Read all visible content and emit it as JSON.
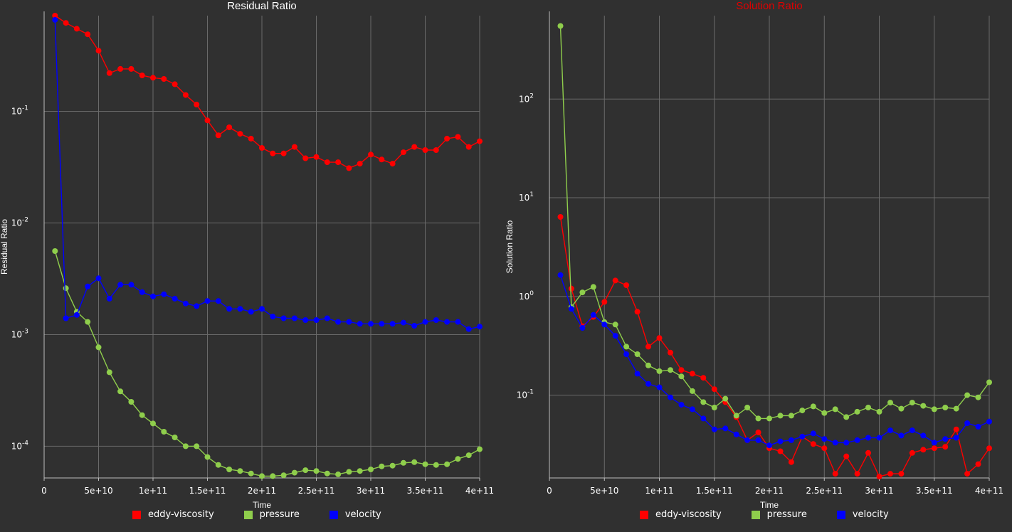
{
  "chart_data": [
    {
      "type": "line",
      "title": "Residual Ratio",
      "title_color": "#ffffff",
      "xlabel": "Time",
      "ylabel": "Residual Ratio",
      "yscale": "log",
      "xlim": [
        0,
        400000000000
      ],
      "ylim": [
        5.2e-05,
        0.72
      ],
      "x_ticks": [
        0,
        50000000000,
        100000000000,
        150000000000,
        200000000000,
        250000000000,
        300000000000,
        350000000000,
        400000000000
      ],
      "x_tick_labels": [
        "0",
        "5e+10",
        "1e+11",
        "1.5e+11",
        "2e+11",
        "2.5e+11",
        "3e+11",
        "3.5e+11",
        "4e+11"
      ],
      "y_ticks": [
        0.0001,
        0.001,
        0.01,
        0.1
      ],
      "y_tick_labels": [
        {
          "base": "10",
          "exp": "-4"
        },
        {
          "base": "10",
          "exp": "-3"
        },
        {
          "base": "10",
          "exp": "-2"
        },
        {
          "base": "10",
          "exp": "-1"
        }
      ],
      "grid": true,
      "legend_position": "bottom",
      "x": [
        10000000000,
        20000000000,
        30000000000,
        40000000000,
        50000000000,
        60000000000,
        70000000000,
        80000000000,
        90000000000,
        100000000000,
        110000000000,
        120000000000,
        130000000000,
        140000000000,
        150000000000,
        160000000000,
        170000000000,
        180000000000,
        190000000000,
        200000000000,
        210000000000,
        220000000000,
        230000000000,
        240000000000,
        250000000000,
        260000000000,
        270000000000,
        280000000000,
        290000000000,
        300000000000,
        310000000000,
        320000000000,
        330000000000,
        340000000000,
        350000000000,
        360000000000,
        370000000000,
        380000000000,
        390000000000,
        400000000000
      ],
      "series": [
        {
          "name": "eddy-viscosity",
          "color": "#ff0000",
          "values": [
            0.72,
            0.62,
            0.55,
            0.49,
            0.35,
            0.22,
            0.24,
            0.24,
            0.21,
            0.2,
            0.195,
            0.175,
            0.14,
            0.115,
            0.083,
            0.061,
            0.072,
            0.063,
            0.057,
            0.047,
            0.042,
            0.042,
            0.048,
            0.038,
            0.039,
            0.035,
            0.035,
            0.031,
            0.034,
            0.041,
            0.037,
            0.034,
            0.043,
            0.048,
            0.045,
            0.045,
            0.057,
            0.059,
            0.048,
            0.054
          ]
        },
        {
          "name": "pressure",
          "color": "#8fce4c",
          "values": [
            0.0056,
            0.0026,
            0.0016,
            0.0013,
            0.00077,
            0.00046,
            0.00031,
            0.00025,
            0.00019,
            0.00016,
            0.000135,
            0.00012,
            0.0001,
            0.0001,
            8e-05,
            6.8e-05,
            6.2e-05,
            6e-05,
            5.7e-05,
            5.4e-05,
            5.4e-05,
            5.5e-05,
            5.8e-05,
            6.1e-05,
            6e-05,
            5.7e-05,
            5.6e-05,
            5.9e-05,
            6e-05,
            6.2e-05,
            6.6e-05,
            6.7e-05,
            7.1e-05,
            7.2e-05,
            6.9e-05,
            6.8e-05,
            6.9e-05,
            7.7e-05,
            8.3e-05,
            9.4e-05
          ]
        },
        {
          "name": "velocity",
          "color": "#0000ff",
          "values": [
            0.66,
            0.0014,
            0.0015,
            0.0027,
            0.0032,
            0.0021,
            0.0028,
            0.0028,
            0.0024,
            0.0022,
            0.0023,
            0.0021,
            0.0019,
            0.0018,
            0.002,
            0.002,
            0.0017,
            0.0017,
            0.0016,
            0.0017,
            0.00145,
            0.0014,
            0.0014,
            0.00135,
            0.00135,
            0.0014,
            0.0013,
            0.0013,
            0.00125,
            0.00125,
            0.00125,
            0.00125,
            0.00128,
            0.0012,
            0.0013,
            0.00135,
            0.0013,
            0.0013,
            0.00112,
            0.00118
          ]
        }
      ]
    },
    {
      "type": "line",
      "title": "Solution Ratio",
      "title_color": "#e00000",
      "xlabel": "Time",
      "ylabel": "Solution Ratio",
      "yscale": "log",
      "xlim": [
        0,
        400000000000
      ],
      "ylim": [
        0.0145,
        700
      ],
      "x_ticks": [
        0,
        50000000000,
        100000000000,
        150000000000,
        200000000000,
        250000000000,
        300000000000,
        350000000000,
        400000000000
      ],
      "x_tick_labels": [
        "0",
        "5e+10",
        "1e+11",
        "1.5e+11",
        "2e+11",
        "2.5e+11",
        "3e+11",
        "3.5e+11",
        "4e+11"
      ],
      "y_ticks": [
        0.1,
        1,
        10,
        100
      ],
      "y_tick_labels": [
        {
          "base": "10",
          "exp": "-1"
        },
        {
          "base": "10",
          "exp": "0"
        },
        {
          "base": "10",
          "exp": "1"
        },
        {
          "base": "10",
          "exp": "2"
        }
      ],
      "grid": true,
      "legend_position": "bottom",
      "x": [
        10000000000,
        20000000000,
        30000000000,
        40000000000,
        50000000000,
        60000000000,
        70000000000,
        80000000000,
        90000000000,
        100000000000,
        110000000000,
        120000000000,
        130000000000,
        140000000000,
        150000000000,
        160000000000,
        170000000000,
        180000000000,
        190000000000,
        200000000000,
        210000000000,
        220000000000,
        230000000000,
        240000000000,
        250000000000,
        260000000000,
        270000000000,
        280000000000,
        290000000000,
        300000000000,
        310000000000,
        320000000000,
        330000000000,
        340000000000,
        350000000000,
        360000000000,
        370000000000,
        380000000000,
        390000000000,
        400000000000
      ],
      "series": [
        {
          "name": "eddy-viscosity",
          "color": "#ff0000",
          "values": [
            6.4,
            1.2,
            0.5,
            0.62,
            0.88,
            1.45,
            1.3,
            0.7,
            0.31,
            0.38,
            0.27,
            0.18,
            0.165,
            0.15,
            0.115,
            0.085,
            0.06,
            0.035,
            0.042,
            0.029,
            0.027,
            0.021,
            0.038,
            0.032,
            0.029,
            0.016,
            0.024,
            0.016,
            0.026,
            0.015,
            0.016,
            0.016,
            0.026,
            0.028,
            0.029,
            0.03,
            0.045,
            0.016,
            0.02,
            0.029
          ]
        },
        {
          "name": "pressure",
          "color": "#8fce4c",
          "values": [
            550,
            0.78,
            1.1,
            1.25,
            0.55,
            0.52,
            0.31,
            0.26,
            0.2,
            0.175,
            0.18,
            0.155,
            0.11,
            0.085,
            0.075,
            0.092,
            0.062,
            0.075,
            0.058,
            0.058,
            0.062,
            0.062,
            0.07,
            0.077,
            0.066,
            0.072,
            0.06,
            0.068,
            0.075,
            0.068,
            0.084,
            0.073,
            0.084,
            0.078,
            0.072,
            0.075,
            0.073,
            0.1,
            0.095,
            0.135
          ]
        },
        {
          "name": "velocity",
          "color": "#0000ff",
          "values": [
            1.65,
            0.75,
            0.48,
            0.65,
            0.52,
            0.4,
            0.26,
            0.165,
            0.13,
            0.12,
            0.095,
            0.08,
            0.072,
            0.058,
            0.045,
            0.046,
            0.04,
            0.035,
            0.035,
            0.031,
            0.034,
            0.035,
            0.038,
            0.041,
            0.036,
            0.033,
            0.033,
            0.035,
            0.037,
            0.037,
            0.044,
            0.039,
            0.044,
            0.039,
            0.033,
            0.036,
            0.037,
            0.052,
            0.048,
            0.054
          ]
        }
      ]
    }
  ],
  "legends": [
    {
      "items": [
        {
          "label": "eddy-viscosity",
          "color": "#ff0000"
        },
        {
          "label": "pressure",
          "color": "#8fce4c"
        },
        {
          "label": "velocity",
          "color": "#0000ff"
        }
      ]
    },
    {
      "items": [
        {
          "label": "eddy-viscosity",
          "color": "#ff0000"
        },
        {
          "label": "pressure",
          "color": "#8fce4c"
        },
        {
          "label": "velocity",
          "color": "#0000ff"
        }
      ]
    }
  ]
}
